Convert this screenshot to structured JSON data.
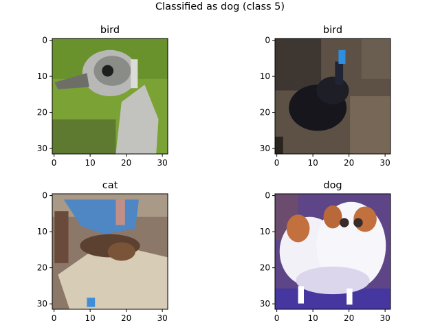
{
  "suptitle": "Classified as dog (class 5)",
  "chart_data": [
    {
      "type": "heatmap",
      "title": "bird",
      "description_colors": [
        "#5e8a2a",
        "#8ab23c",
        "#7c8077",
        "#b6b6b6",
        "#2a2a2a",
        "#d4d4d0"
      ],
      "xlim": [
        -0.5,
        31.5
      ],
      "ylim": [
        31.5,
        -0.5
      ],
      "xticks": [
        0,
        10,
        20,
        30
      ],
      "yticks": [
        0,
        10,
        20,
        30
      ],
      "image_size": [
        32,
        32
      ]
    },
    {
      "type": "heatmap",
      "title": "bird",
      "description_colors": [
        "#5b4f42",
        "#3a3430",
        "#121218",
        "#7a6a58",
        "#2e8ee0"
      ],
      "xlim": [
        -0.5,
        31.5
      ],
      "ylim": [
        31.5,
        -0.5
      ],
      "xticks": [
        0,
        10,
        20,
        30
      ],
      "yticks": [
        0,
        10,
        20,
        30
      ],
      "image_size": [
        32,
        32
      ]
    },
    {
      "type": "heatmap",
      "title": "cat",
      "description_colors": [
        "#4f86c4",
        "#8a6a55",
        "#d8cdb8",
        "#5a4030",
        "#3f8fd8"
      ],
      "xlim": [
        -0.5,
        31.5
      ],
      "ylim": [
        31.5,
        -0.5
      ],
      "xticks": [
        0,
        10,
        20,
        30
      ],
      "yticks": [
        0,
        10,
        20,
        30
      ],
      "image_size": [
        32,
        32
      ]
    },
    {
      "type": "heatmap",
      "title": "dog",
      "description_colors": [
        "#5a3e88",
        "#f4f2f8",
        "#c06a3a",
        "#4a3aa0",
        "#ded8ee"
      ],
      "xlim": [
        -0.5,
        31.5
      ],
      "ylim": [
        31.5,
        -0.5
      ],
      "xticks": [
        0,
        10,
        20,
        30
      ],
      "yticks": [
        0,
        10,
        20,
        30
      ],
      "image_size": [
        32,
        32
      ]
    }
  ]
}
